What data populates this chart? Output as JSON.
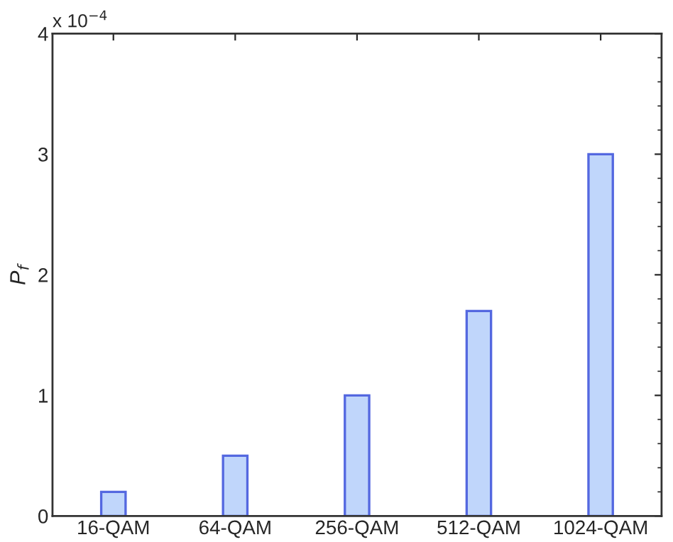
{
  "chart_data": {
    "type": "bar",
    "ylabel": "P$_{f}$",
    "categories": [
      "16-QAM",
      "64-QAM",
      "256-QAM",
      "512-QAM",
      "1024-QAM"
    ],
    "values": [
      0.2,
      0.5,
      1.0,
      1.7,
      3.0
    ],
    "color": "#c0d6fb",
    "ylim": [
      0,
      4
    ],
    "yticks": [
      0,
      1,
      2,
      3,
      4
    ],
    "grid": false,
    "annotations": [
      "x 10$^{−4}$"
    ]
  }
}
